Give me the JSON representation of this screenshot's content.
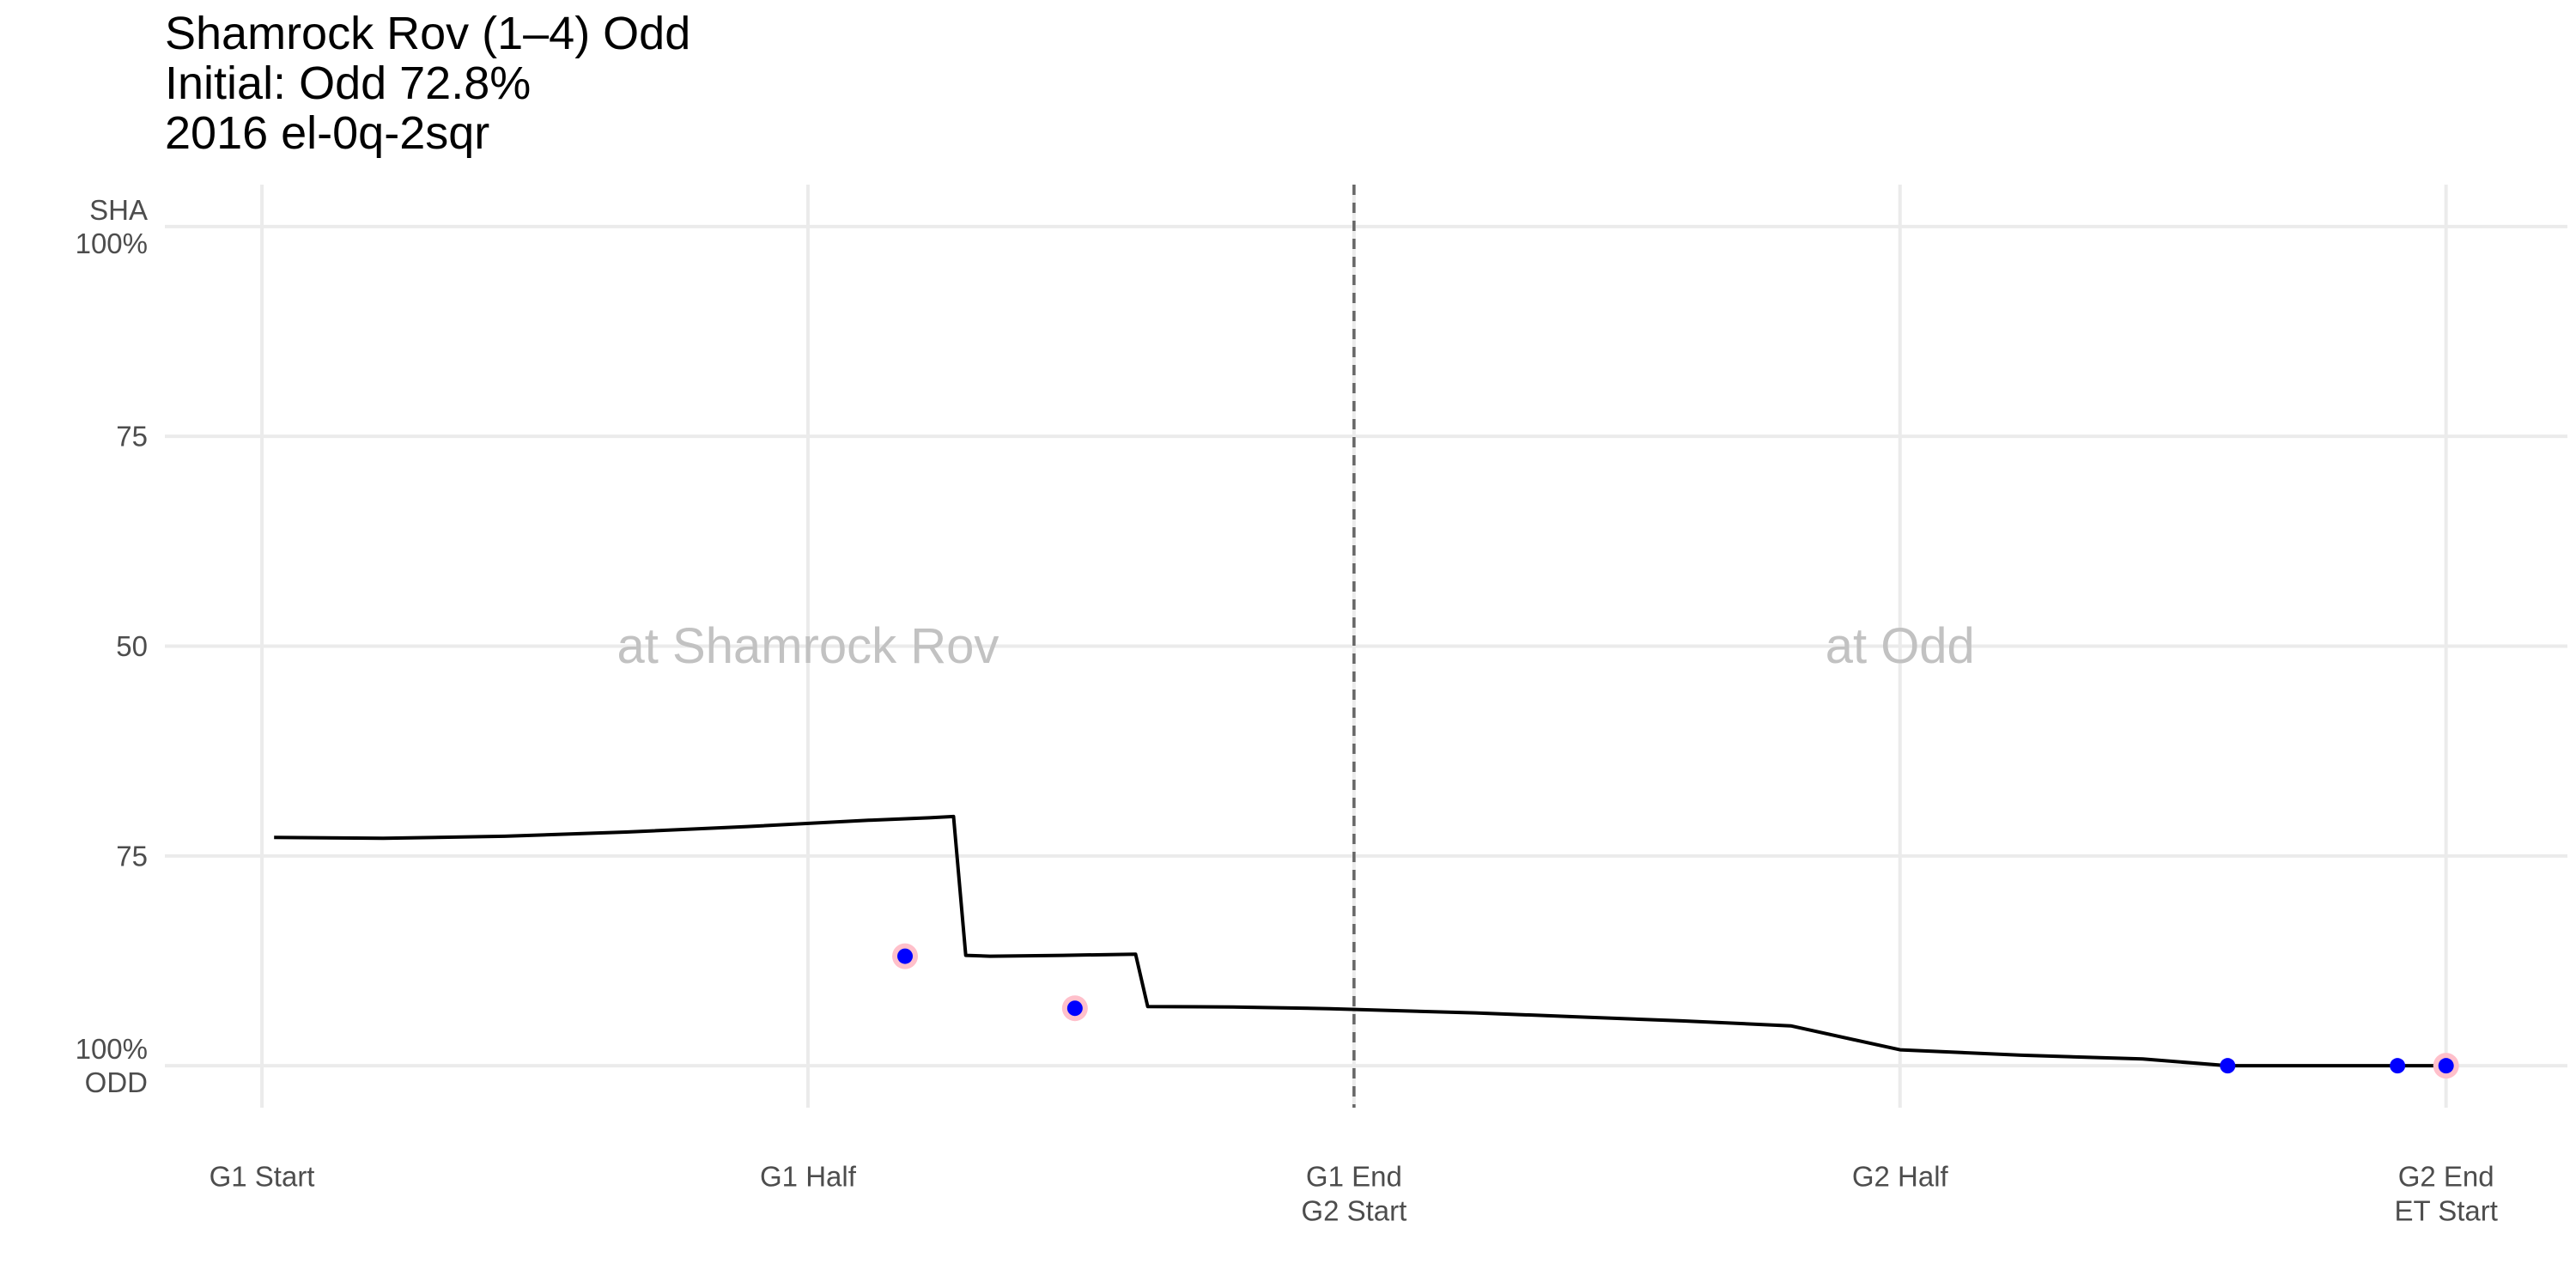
{
  "titles": {
    "line1": "Shamrock Rov (1–4) Odd",
    "line2": "Initial: Odd 72.8%",
    "line3": "2016 el-0q-2sqr"
  },
  "colors": {
    "line": "#000000",
    "goal_point": "#0000ff",
    "goal_halo": "#ffc0cb",
    "grid": "#ebebeb",
    "divider": "#666666",
    "venue_text": "#c2c2c2"
  },
  "chart_data": {
    "type": "line",
    "title": "Shamrock Rov (1–4) Odd",
    "subtitle": [
      "Initial: Odd 72.8%",
      "2016 el-0q-2sqr"
    ],
    "x_ticks": [
      {
        "x": 0,
        "lines": [
          "G1 Start"
        ]
      },
      {
        "x": 45,
        "lines": [
          "G1 Half"
        ]
      },
      {
        "x": 90,
        "lines": [
          "G1 End",
          "G2 Start"
        ]
      },
      {
        "x": 135,
        "lines": [
          "G2 Half"
        ]
      },
      {
        "x": 180,
        "lines": [
          "G2 End",
          "ET Start"
        ]
      }
    ],
    "y_ticks": [
      {
        "y": 100,
        "lines": [
          "SHA",
          "100%"
        ]
      },
      {
        "y": 50,
        "lines": [
          "75"
        ]
      },
      {
        "y": 0,
        "lines": [
          "50"
        ]
      },
      {
        "y": -50,
        "lines": [
          "75"
        ]
      },
      {
        "y": -100,
        "lines": [
          "100%",
          "ODD"
        ]
      }
    ],
    "xlim": [
      -8,
      190
    ],
    "ylim": [
      -110,
      110
    ],
    "divider_x": 90,
    "venue_labels": [
      {
        "x": 45,
        "y": 0,
        "text": "at Shamrock Rov"
      },
      {
        "x": 135,
        "y": 0,
        "text": "at Odd"
      }
    ],
    "series": [
      {
        "points": [
          [
            1,
            -45.6
          ],
          [
            10,
            -45.8
          ],
          [
            20,
            -45.3
          ],
          [
            30,
            -44.3
          ],
          [
            40,
            -43.0
          ],
          [
            50,
            -41.5
          ],
          [
            55,
            -40.9
          ],
          [
            57,
            -40.6
          ],
          [
            58,
            -73.7
          ],
          [
            60,
            -73.9
          ],
          [
            66,
            -73.7
          ],
          [
            72,
            -73.4
          ],
          [
            73,
            -85.9
          ],
          [
            80,
            -86.0
          ],
          [
            88,
            -86.4
          ],
          [
            95,
            -87.0
          ],
          [
            100,
            -87.4
          ],
          [
            108,
            -88.3
          ],
          [
            117,
            -89.3
          ],
          [
            126,
            -90.5
          ],
          [
            135,
            -96.2
          ],
          [
            145,
            -97.5
          ],
          [
            155,
            -98.4
          ],
          [
            162,
            -100
          ],
          [
            176,
            -100
          ],
          [
            180,
            -100
          ]
        ]
      }
    ],
    "goal_points": [
      {
        "x": 53,
        "y": -73.9,
        "halo": true
      },
      {
        "x": 67,
        "y": -86.3,
        "halo": true
      },
      {
        "x": 162,
        "y": -100,
        "halo": false
      },
      {
        "x": 176,
        "y": -100,
        "halo": false
      },
      {
        "x": 180,
        "y": -100,
        "halo": true
      }
    ]
  }
}
